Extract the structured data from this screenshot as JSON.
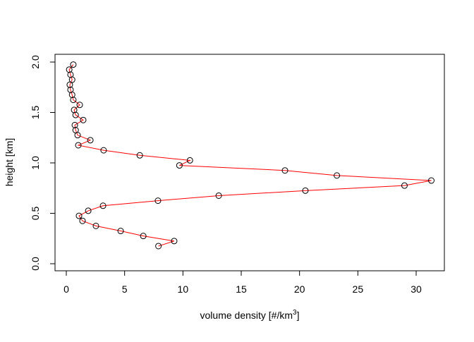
{
  "chart_data": {
    "type": "line",
    "markers": "open-circle",
    "line_color": "#ff0000",
    "marker_color": "#000000",
    "xlabel": "volume density [#/km",
    "xlabel_superscript": "3",
    "xlabel_suffix": "]",
    "ylabel": "height [km]",
    "xlim": [
      0,
      31.4
    ],
    "ylim": [
      0,
      2.0
    ],
    "xticks": [
      0,
      5,
      10,
      15,
      20,
      25,
      30
    ],
    "yticks": [
      0.0,
      0.5,
      1.0,
      1.5,
      2.0
    ],
    "ytick_labels": [
      "0.0",
      "0.5",
      "1.0",
      "1.5",
      "2.0"
    ],
    "grid": false,
    "points": [
      {
        "x": 0.6,
        "y": 1.975
      },
      {
        "x": 0.25,
        "y": 1.925
      },
      {
        "x": 0.36,
        "y": 1.875
      },
      {
        "x": 0.5,
        "y": 1.825
      },
      {
        "x": 0.3,
        "y": 1.775
      },
      {
        "x": 0.36,
        "y": 1.725
      },
      {
        "x": 0.5,
        "y": 1.675
      },
      {
        "x": 0.6,
        "y": 1.625
      },
      {
        "x": 1.15,
        "y": 1.575
      },
      {
        "x": 0.67,
        "y": 1.525
      },
      {
        "x": 0.8,
        "y": 1.475
      },
      {
        "x": 1.45,
        "y": 1.425
      },
      {
        "x": 0.73,
        "y": 1.375
      },
      {
        "x": 0.8,
        "y": 1.325
      },
      {
        "x": 0.97,
        "y": 1.275
      },
      {
        "x": 2.06,
        "y": 1.225
      },
      {
        "x": 1.03,
        "y": 1.175
      },
      {
        "x": 3.2,
        "y": 1.125
      },
      {
        "x": 6.3,
        "y": 1.075
      },
      {
        "x": 10.6,
        "y": 1.025
      },
      {
        "x": 9.7,
        "y": 0.975
      },
      {
        "x": 18.75,
        "y": 0.925
      },
      {
        "x": 23.2,
        "y": 0.875
      },
      {
        "x": 31.3,
        "y": 0.825
      },
      {
        "x": 29.0,
        "y": 0.775
      },
      {
        "x": 20.5,
        "y": 0.725
      },
      {
        "x": 13.07,
        "y": 0.675
      },
      {
        "x": 7.86,
        "y": 0.625
      },
      {
        "x": 3.15,
        "y": 0.575
      },
      {
        "x": 1.88,
        "y": 0.525
      },
      {
        "x": 1.09,
        "y": 0.475
      },
      {
        "x": 1.39,
        "y": 0.425
      },
      {
        "x": 2.54,
        "y": 0.375
      },
      {
        "x": 4.66,
        "y": 0.325
      },
      {
        "x": 6.6,
        "y": 0.275
      },
      {
        "x": 9.25,
        "y": 0.225
      },
      {
        "x": 7.9,
        "y": 0.175
      }
    ]
  }
}
